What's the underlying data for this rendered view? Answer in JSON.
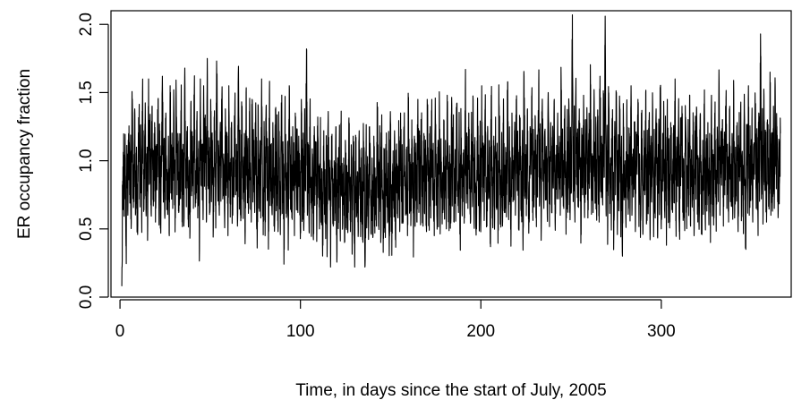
{
  "chart_data": {
    "type": "line",
    "title": "",
    "xlabel": "Time, in days since the start of July, 2005",
    "ylabel": "ER occupancy fraction",
    "xlim": [
      -5,
      372
    ],
    "ylim": [
      0,
      2.1
    ],
    "x_ticks": [
      0,
      100,
      200,
      300
    ],
    "y_ticks": [
      0.0,
      0.5,
      1.0,
      1.5,
      2.0
    ],
    "x_tick_labels": [
      "0",
      "100",
      "200",
      "300"
    ],
    "y_tick_labels": [
      "0.0",
      "0.5",
      "1.0",
      "1.5",
      "2.0"
    ],
    "grid": false,
    "legend": "none",
    "line_color": "#000000",
    "points_per_day": 6,
    "series": [
      {
        "x_start": 1,
        "x_end": 366,
        "values": [
          0.08,
          0.85,
          0.98,
          0.72,
          1.05,
          0.4,
          0.95,
          0.6,
          1.2,
          0.75,
          1.02,
          0.55,
          1.42,
          0.88,
          0.7,
          1.38,
          0.62,
          1.1,
          0.48,
          0.95,
          1.3,
          0.8,
          1.12,
          0.58,
          1.5,
          0.9,
          0.72,
          1.25,
          0.65,
          1.05,
          0.52,
          1.6,
          0.85,
          1.15,
          0.62,
          1.4,
          0.95,
          0.7,
          1.28,
          0.55,
          1.08,
          0.88,
          1.45,
          0.68,
          1.22,
          0.5,
          1.0,
          1.62,
          0.78,
          1.1,
          0.6,
          1.35,
          0.92,
          0.7,
          1.18,
          0.45,
          1.55,
          0.82,
          1.05,
          0.65,
          1.3,
          0.98,
          0.58,
          1.48,
          0.75,
          1.2,
          0.62,
          1.05,
          0.88,
          1.38,
          0.7,
          1.12,
          0.55,
          1.68,
          0.8,
          0.95,
          1.25,
          0.6,
          1.0,
          0.48,
          1.42,
          0.85,
          1.18,
          0.65,
          1.52,
          0.9,
          0.72,
          1.3,
          0.58,
          1.08,
          0.35,
          1.6,
          0.82,
          1.12,
          0.68,
          1.4,
          0.95,
          1.22,
          0.55,
          1.75,
          0.88,
          1.05,
          0.62,
          1.45,
          0.78,
          1.15,
          0.5,
          1.32,
          0.98,
          0.7,
          1.62,
          0.85,
          1.1,
          0.6,
          1.25,
          0.92,
          1.48,
          0.72,
          1.05,
          0.58,
          1.38,
          0.8,
          1.18,
          0.45,
          1.55,
          0.9,
          0.68,
          1.28,
          0.62,
          1.02,
          0.85,
          1.42,
          0.75,
          1.12,
          0.52,
          1.65,
          0.88,
          1.0,
          0.6,
          1.35,
          0.95,
          0.7,
          1.2,
          0.48,
          1.5,
          0.82,
          1.08,
          0.65,
          1.3,
          0.92,
          0.55,
          1.45,
          0.78,
          1.15,
          0.62,
          1.25,
          0.85,
          0.5,
          1.4,
          0.72,
          1.05,
          0.58,
          1.6,
          0.88,
          0.68,
          1.18,
          0.45,
          1.32,
          0.8,
          1.0,
          0.55,
          1.48,
          0.75,
          1.1,
          0.62,
          1.28,
          0.9,
          0.52,
          1.38,
          0.7,
          1.15,
          0.48,
          1.22,
          0.85,
          0.6,
          1.42,
          0.78,
          1.05,
          0.4,
          1.3,
          0.88,
          0.65,
          1.12,
          0.5,
          1.55,
          0.72,
          1.0,
          0.58,
          1.25,
          0.95,
          0.45,
          1.35,
          0.8,
          1.08,
          0.62,
          1.18,
          0.85,
          0.5,
          1.45,
          0.7,
          1.02,
          0.55,
          1.28,
          0.78,
          1.82,
          0.6,
          1.12,
          0.48,
          1.38,
          0.82,
          0.65,
          1.05,
          0.42,
          1.25,
          0.75,
          0.98,
          0.55,
          1.32,
          0.88,
          0.5,
          1.15,
          0.68,
          0.92,
          0.38,
          1.22,
          0.8,
          0.6,
          1.08,
          0.45,
          1.3,
          0.72,
          0.95,
          0.3,
          1.18,
          0.85,
          0.52,
          1.0,
          0.62,
          1.25,
          0.42,
          0.9,
          0.7,
          1.12,
          0.48,
          1.2,
          0.78,
          0.55,
          1.02,
          0.4,
          1.15,
          0.68,
          0.88,
          0.5,
          1.28,
          0.75,
          0.6,
          1.05,
          0.45,
          1.18,
          0.82,
          0.35,
          1.1,
          0.65,
          0.92,
          0.48,
          1.22,
          0.72,
          0.55,
          1.0,
          0.42,
          1.15,
          0.8,
          0.28,
          1.08,
          0.62,
          0.9,
          0.5,
          1.25,
          0.75,
          0.58,
          1.02,
          0.45,
          1.18,
          0.68,
          0.85,
          0.52,
          1.3,
          0.78,
          0.62,
          1.1,
          0.4,
          1.2,
          0.72,
          0.55,
          0.95,
          0.48,
          1.12,
          0.82,
          0.6,
          1.05,
          0.45,
          1.28,
          0.75,
          0.52,
          0.98,
          0.65,
          1.22,
          0.42,
          1.08,
          0.8,
          0.58,
          1.15,
          0.48,
          1.35,
          0.7,
          0.88,
          0.55,
          1.25,
          0.92,
          0.62,
          1.1,
          0.45,
          1.4,
          0.78,
          0.95,
          0.58,
          1.3,
          0.85,
          0.5,
          1.18,
          0.68,
          1.05,
          0.55,
          1.45,
          0.8,
          0.98,
          0.62,
          1.28,
          0.9,
          0.52,
          1.2,
          0.72,
          1.08,
          0.48,
          1.38,
          0.85,
          0.65,
          1.15,
          0.58,
          1.32,
          0.78,
          0.95,
          0.45,
          1.25,
          0.88,
          0.6,
          1.1,
          0.7,
          1.4,
          0.55,
          1.02,
          0.82,
          0.62,
          1.3,
          0.75,
          1.15,
          0.5,
          1.48,
          0.9,
          0.68,
          1.05,
          0.58,
          1.35,
          0.8,
          1.22,
          0.55,
          1.0,
          0.72,
          1.42,
          0.85,
          0.62,
          1.18,
          0.48,
          1.28,
          0.92,
          0.7,
          1.08,
          0.58,
          1.52,
          0.8,
          1.0,
          0.65,
          1.35,
          0.88,
          0.55,
          1.2,
          0.75,
          1.45,
          0.62,
          1.05,
          0.82,
          0.5,
          1.3,
          0.9,
          0.68,
          1.15,
          0.58,
          1.55,
          0.78,
          1.0,
          0.62,
          1.38,
          0.85,
          0.52,
          1.22,
          0.72,
          1.1,
          0.45,
          1.48,
          0.88,
          0.65,
          1.18,
          0.58,
          1.32,
          0.8,
          0.95,
          0.6,
          1.42,
          0.9,
          0.7,
          1.12,
          0.52,
          1.28,
          0.82,
          0.62,
          1.05,
          0.75,
          1.58,
          0.68,
          1.0,
          0.85,
          0.55,
          1.35,
          0.92,
          0.72,
          1.2,
          0.6,
          1.45,
          0.78,
          1.08,
          0.58,
          1.3,
          0.95,
          0.65,
          1.15,
          0.5,
          1.62,
          0.85,
          1.02,
          0.68,
          1.38,
          0.8,
          0.55,
          1.25,
          0.9,
          1.48,
          0.62,
          1.1,
          0.75,
          1.32,
          0.58,
          1.05,
          0.88,
          1.55,
          0.7,
          1.18,
          0.52,
          1.4,
          0.85,
          0.65,
          1.22,
          0.78,
          1.02,
          0.58,
          1.5,
          0.9,
          0.68,
          1.28,
          0.62,
          1.12,
          0.8,
          1.45,
          0.55,
          1.0,
          0.85,
          1.35,
          0.72,
          1.18,
          0.6,
          1.6,
          0.88,
          1.05,
          0.65,
          1.3,
          0.95,
          0.58,
          1.22,
          0.78,
          1.42,
          0.62,
          1.1,
          0.82,
          2.08,
          0.7,
          1.25,
          0.55,
          1.52,
          0.88,
          1.02,
          0.68,
          1.38,
          0.92,
          0.6,
          1.18,
          0.75,
          1.48,
          0.65,
          1.08,
          0.85,
          1.32,
          0.58,
          1.2,
          0.9,
          1.55,
          0.72,
          1.0,
          0.62,
          1.4,
          0.85,
          1.12,
          0.68,
          1.28,
          0.95,
          0.55,
          1.62,
          0.8,
          1.05,
          0.7,
          1.35,
          0.88,
          2.06,
          0.65,
          1.15,
          0.52,
          1.45,
          0.82,
          0.98,
          0.6,
          1.3,
          0.9,
          0.45,
          1.22,
          0.75,
          1.5,
          0.58,
          1.08,
          0.85,
          1.38,
          0.62,
          1.18,
          0.3,
          1.42,
          0.78,
          1.0,
          0.55,
          1.32,
          0.88,
          0.65,
          1.2,
          0.72,
          1.55,
          0.6,
          1.05,
          0.82,
          1.28,
          0.48,
          1.12,
          0.9,
          1.45,
          0.68,
          1.0,
          0.58,
          1.35,
          0.85,
          0.62,
          1.22,
          0.75,
          1.5,
          0.55,
          1.1,
          0.8,
          1.3,
          0.42,
          1.18,
          0.88,
          1.42,
          0.65,
          1.02,
          0.58,
          1.38,
          0.82,
          0.6,
          1.25,
          0.72,
          1.55,
          0.5,
          1.08,
          0.85,
          1.32,
          0.62,
          1.15,
          0.38,
          1.45,
          0.78,
          1.0,
          0.55,
          1.28,
          0.9,
          0.65,
          1.2,
          0.7,
          1.6,
          0.58,
          1.05,
          0.82,
          1.35,
          0.48,
          1.12,
          0.88,
          1.4,
          0.62,
          1.0,
          0.55,
          1.3,
          0.85,
          0.68,
          1.18,
          0.75,
          1.48,
          0.52,
          1.08,
          0.8,
          1.25,
          0.45,
          1.22,
          0.9,
          1.38,
          0.65,
          1.02,
          0.58,
          1.32,
          0.82,
          0.6,
          1.15,
          0.72,
          1.52,
          0.55,
          1.1,
          0.85,
          1.28,
          0.62,
          1.2,
          0.4,
          1.42,
          0.78,
          1.0,
          0.58,
          1.35,
          0.88,
          0.68,
          1.22,
          0.7,
          1.58,
          0.6,
          1.05,
          0.82,
          1.3,
          0.52,
          1.15,
          0.92,
          1.45,
          0.65,
          1.02,
          0.55,
          1.38,
          0.85,
          0.72,
          1.2,
          0.62,
          1.5,
          0.58,
          1.1,
          0.8,
          1.28,
          0.48,
          1.18,
          0.9,
          1.4,
          0.68,
          1.0,
          0.62,
          1.32,
          0.85,
          0.35,
          1.25,
          0.75,
          1.55,
          0.6,
          1.08,
          0.82,
          1.3,
          0.55,
          1.12,
          0.9,
          1.42,
          0.65,
          1.05,
          0.58,
          1.35,
          0.8,
          1.93,
          0.72,
          1.22,
          0.62,
          1.48,
          0.88,
          1.02,
          0.55,
          1.3,
          0.92,
          0.68,
          1.65,
          0.6,
          1.15,
          0.78,
          1.4,
          0.65,
          1.55,
          0.9,
          1.25,
          0.7,
          1.08,
          0.85,
          1.2
        ]
      }
    ]
  }
}
